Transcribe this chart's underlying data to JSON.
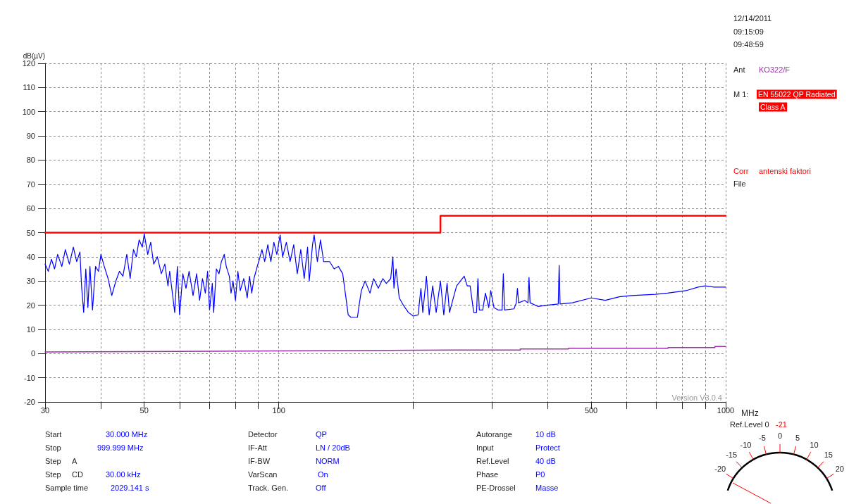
{
  "chart_data": [
    {
      "type": "line",
      "xlabel": "MHz",
      "ylabel": "dB(µV)",
      "log": "x",
      "xlim": [
        30,
        1000
      ],
      "ylim": [
        -20,
        120
      ],
      "xticks": [
        30,
        {
          "value": 40,
          "label": null
        },
        50,
        {
          "value": 60,
          "label": null
        },
        {
          "value": 70,
          "label": null
        },
        {
          "value": 80,
          "label": null
        },
        {
          "value": 90,
          "label": null
        },
        100,
        {
          "value": 200,
          "label": null
        },
        {
          "value": 300,
          "label": null
        },
        {
          "value": 400,
          "label": null
        },
        500,
        {
          "value": 600,
          "label": null
        },
        {
          "value": 700,
          "label": null
        },
        {
          "value": 800,
          "label": null
        },
        {
          "value": 900,
          "label": null
        },
        1000
      ],
      "yticks": [
        -20,
        -10,
        0,
        10,
        20,
        30,
        40,
        50,
        60,
        70,
        80,
        90,
        100,
        110,
        120
      ],
      "grid": true,
      "marker": "none",
      "line_style": "solid",
      "series": [
        {
          "color": "#ff0000",
          "x": [
            30,
            230,
            230,
            1000
          ],
          "values": [
            50,
            50,
            57,
            57
          ]
        },
        {
          "color": "#9b2fa8",
          "x": [
            30,
            84,
            243,
            347,
            347,
            445,
            445,
            743,
            743,
            946,
            946,
            1000
          ],
          "values": [
            0.7,
            1.0,
            1.5,
            1.5,
            1.9,
            1.9,
            2.2,
            2.2,
            2.5,
            2.5,
            2.9,
            2.9
          ]
        },
        {
          "color": "#0000ff",
          "x": [
            30,
            30.5,
            31,
            31.5,
            32,
            32.7,
            33.3,
            34,
            34.7,
            35.3,
            35.9,
            36.2,
            36.6,
            37,
            37.4,
            37.8,
            38.3,
            38.9,
            39.5,
            40,
            40.7,
            41.5,
            42.3,
            43.2,
            44,
            44.8,
            45.7,
            46.5,
            47.3,
            48,
            48.7,
            49.5,
            50,
            50.9,
            51.7,
            52.5,
            53.5,
            54.6,
            55.6,
            56.5,
            57,
            57.8,
            58.5,
            59.3,
            60,
            61,
            62,
            63,
            64.3,
            65.5,
            66.5,
            67.5,
            68.5,
            69.3,
            70,
            71,
            71.5,
            72.5,
            73.5,
            74.4,
            75.5,
            76.3,
            77.5,
            78.2,
            79,
            80,
            81,
            82,
            83.5,
            85,
            86,
            87,
            88,
            89.5,
            90.5,
            91.7,
            93,
            94.5,
            96,
            97.5,
            99,
            100.7,
            102,
            104,
            106,
            108,
            110,
            112,
            114,
            116,
            117,
            119,
            120,
            122,
            124,
            126,
            130,
            133,
            136,
            139,
            141.6,
            143,
            145,
            150,
            151,
            153,
            156,
            160,
            163,
            167,
            171,
            174,
            178,
            180,
            181,
            183,
            186,
            190,
            195,
            200,
            205,
            208,
            210,
            214,
            217,
            221,
            225,
            230,
            234,
            238,
            241,
            245,
            250,
            255,
            260,
            264,
            268,
            273,
            277,
            279,
            281,
            286,
            290,
            295,
            298,
            303,
            310,
            316,
            318,
            320,
            336,
            340,
            342,
            344,
            355,
            361,
            363,
            365,
            380,
            398,
            422,
            424,
            426,
            454,
            500,
            538,
            578,
            615,
            696,
            741,
            815,
            867,
            900,
            942,
            1000
          ],
          "values": [
            37,
            34,
            39,
            35,
            41,
            36,
            43,
            37,
            44,
            38,
            42,
            28,
            17,
            35,
            19,
            36,
            18,
            36,
            34,
            41,
            36,
            31,
            24,
            30,
            34,
            32,
            41,
            31,
            43,
            40,
            47,
            44,
            49.5,
            41,
            46,
            37,
            40,
            33,
            37,
            28,
            34,
            25,
            17,
            36,
            16,
            33,
            27,
            34,
            24,
            33,
            22,
            31,
            25,
            34,
            18,
            29,
            17,
            35,
            33,
            38,
            41,
            36,
            32,
            25,
            30,
            22,
            34,
            26,
            31,
            23,
            32,
            25,
            31,
            36,
            39,
            43,
            38,
            45,
            38,
            46,
            41,
            49,
            40,
            46,
            38,
            45,
            33,
            43,
            31,
            44,
            30,
            45,
            49,
            38,
            47,
            38,
            38,
            35,
            36,
            33,
            22,
            16,
            15,
            15,
            19,
            26,
            30,
            25,
            31,
            27,
            31,
            29,
            31,
            40,
            27,
            35,
            23,
            20,
            17,
            15.5,
            16,
            27,
            17,
            32,
            16,
            28,
            17,
            30,
            16,
            29,
            17,
            22,
            28,
            30,
            32,
            28,
            28,
            17,
            17,
            31,
            18,
            18,
            25,
            19,
            26,
            19,
            18,
            18,
            33,
            18,
            18.5,
            21,
            27,
            21,
            22,
            21,
            31.5,
            21,
            19.5,
            20,
            20.5,
            36.5,
            20.5,
            21,
            23,
            22,
            23.5,
            24,
            24.5,
            25,
            26,
            27.5,
            28,
            27.5,
            27.5
          ]
        }
      ],
      "annotations": [
        "Version V3.0.4",
        "12/14/2011",
        "09:15:09",
        "09:48:59",
        "Ant",
        "KO322/F",
        "M 1:",
        "EN 55022 QP Radiated",
        "Class A",
        "Corr",
        "antenski faktori",
        "File",
        "Start",
        "30.000 MHz",
        "Stop",
        "999.999 MHz",
        "Step",
        "A",
        "Step",
        "CD",
        "30.00 kHz",
        "Sample time",
        "2029.141 s",
        "Detector",
        "QP",
        "IF-Att",
        "LN / 20dB",
        "IF-BW",
        "NORM",
        "VarScan",
        "On",
        "Track. Gen.",
        "Off",
        "Autorange",
        "10 dB",
        "Input",
        "Protect",
        "Ref.Level",
        "40 dB",
        "Phase",
        "P0",
        "PE-Drossel",
        "Masse",
        "Ref.Level 0",
        "-21",
        "-20",
        "-15",
        "-10",
        "-5",
        "0",
        "5",
        "10",
        "15",
        "20"
      ]
    }
  ]
}
